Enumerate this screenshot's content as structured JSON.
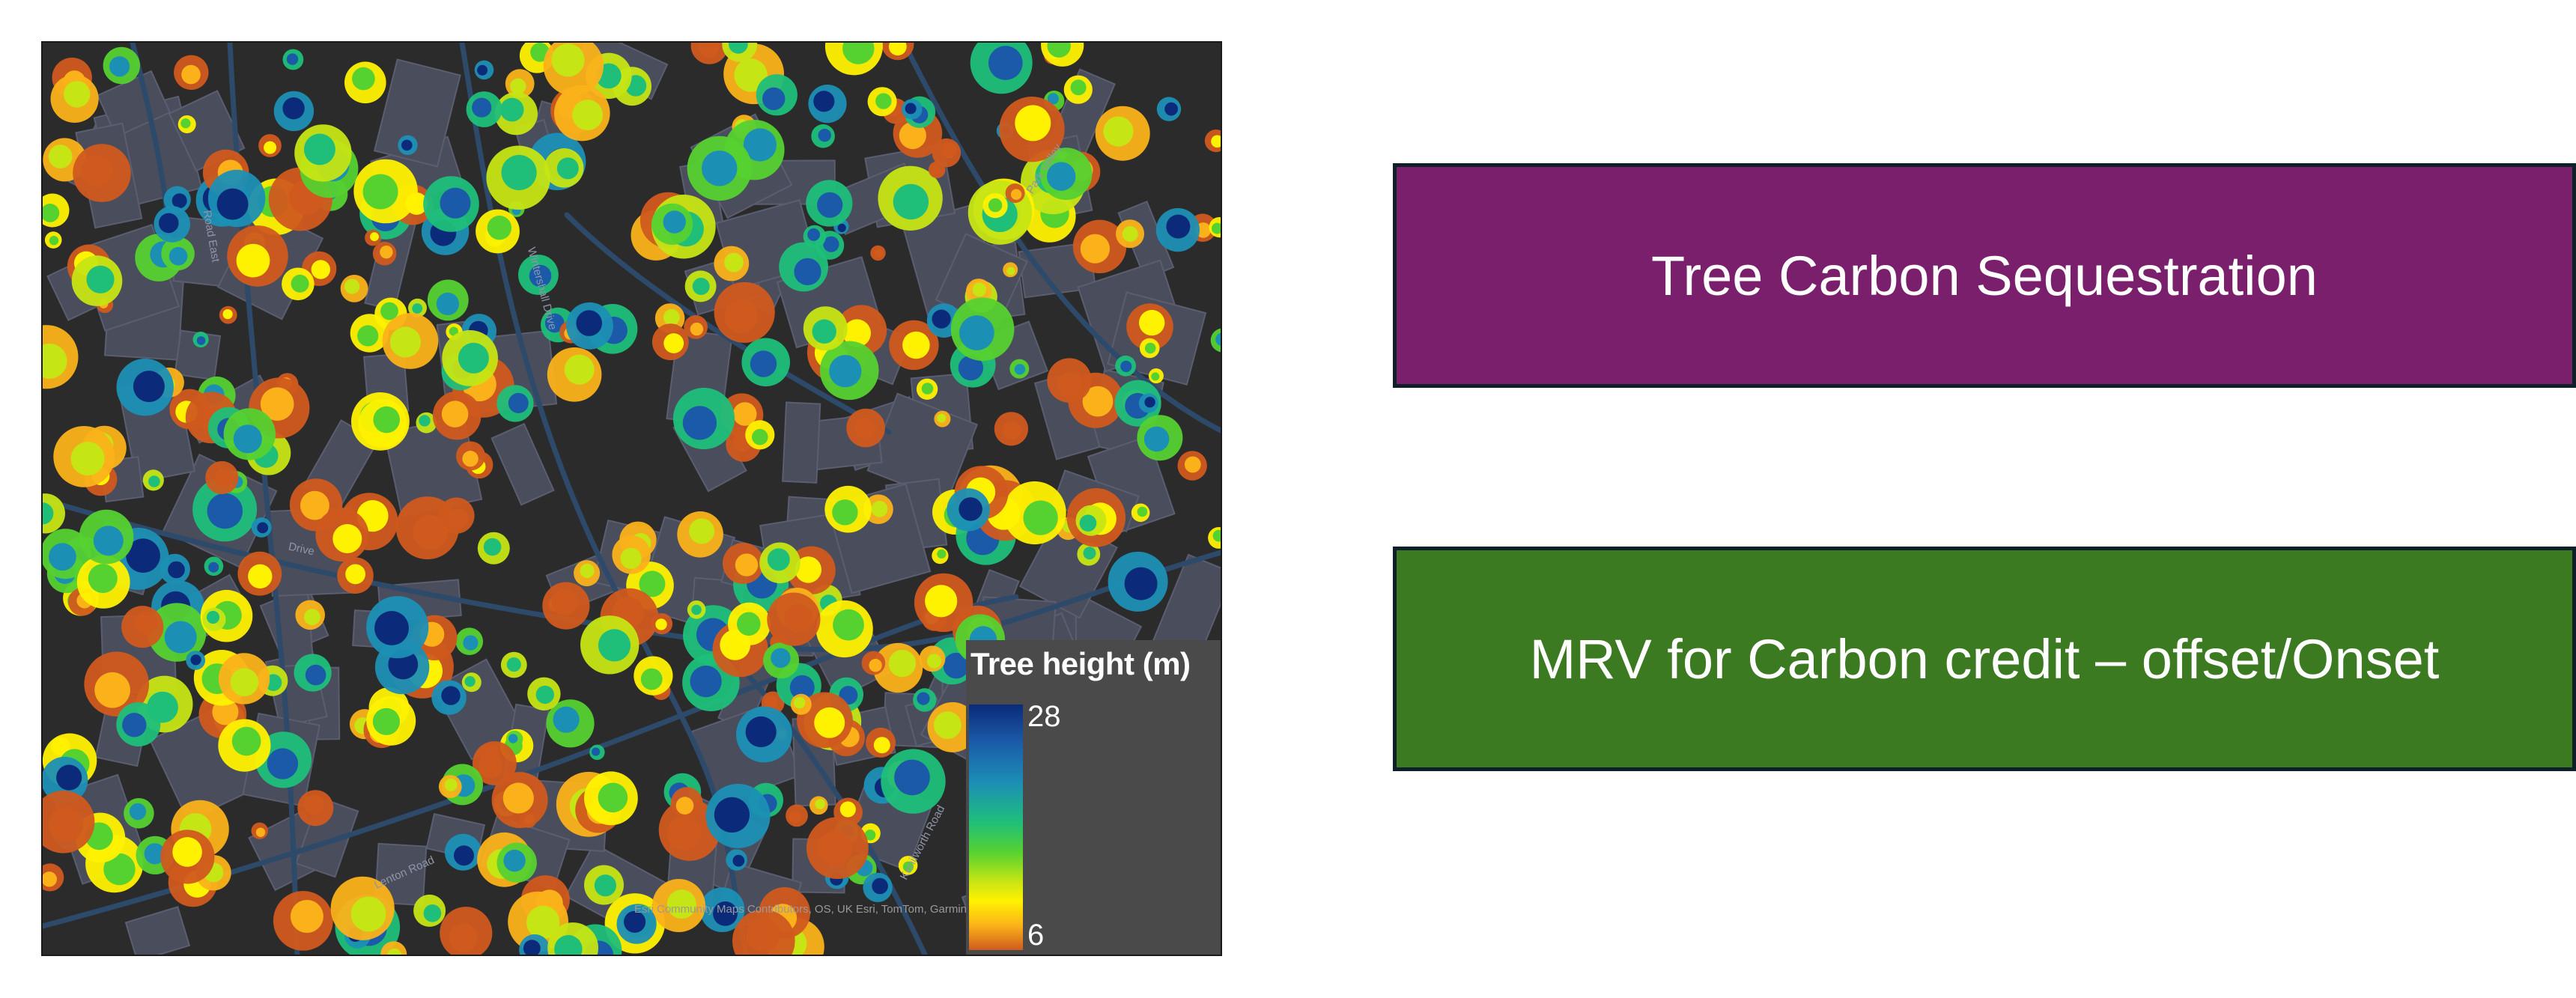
{
  "map": {
    "legend": {
      "title": "Tree height (m)",
      "max": "28",
      "min": "6",
      "gradient": [
        "#0b2a7a",
        "#1b5aa8",
        "#1c8fb5",
        "#1fbf7a",
        "#55d130",
        "#c6e514",
        "#fff200",
        "#fbb21a",
        "#d05a1e"
      ]
    },
    "attribution": "Esri Community Maps Contributors, OS, UK Esri, TomTom, Garmin",
    "streets": [
      "Park Valley",
      "Road East",
      "Wintershall Drive",
      "Drive",
      "Lenton Road",
      "Kenilworth Road"
    ]
  },
  "cards": {
    "top": {
      "label": "Tree Carbon Sequestration",
      "color": "#7a1f6b"
    },
    "bottom": {
      "label": "MRV for Carbon credit – offset/Onset",
      "color": "#3c7a22"
    }
  }
}
